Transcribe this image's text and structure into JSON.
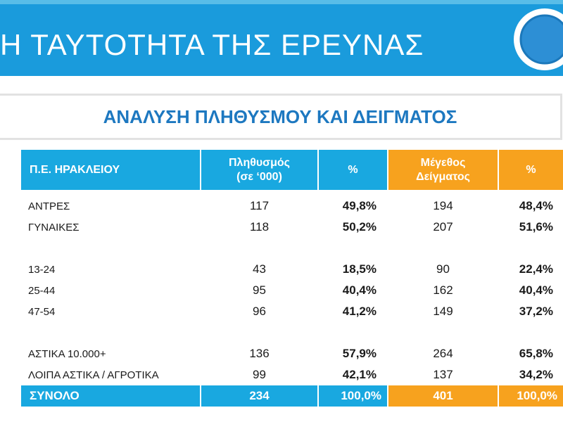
{
  "header": {
    "title": "Η ΤΑΥΤΟΤΗΤΑ ΤΗΣ ΕΡΕΥΝΑΣ",
    "subtitle": "ΑΝΑΛΥΣΗ ΠΛΗΘΥΣΜΟΥ ΚΑΙ ΔΕΙΓΜΑΤΟΣ"
  },
  "colors": {
    "blue": "#19a8e0",
    "orange": "#f7a21e",
    "title_blue": "#1d78c0"
  },
  "table": {
    "columns": {
      "region": "Π.Ε. ΗΡΑΚΛΕΙΟΥ",
      "population_l1": "Πληθυσμός",
      "population_l2": "(σε ‘000)",
      "pct": "%",
      "sample_l1": "Μέγεθος",
      "sample_l2": "Δείγματος",
      "pct2": "%"
    },
    "rows": [
      {
        "label": "ΑΝΤΡΕΣ",
        "population": "117",
        "pop_pct": "49,8%",
        "sample": "194",
        "sample_pct": "48,4%"
      },
      {
        "label": "ΓΥΝΑΙΚΕΣ",
        "population": "118",
        "pop_pct": "50,2%",
        "sample": "207",
        "sample_pct": "51,6%"
      },
      {
        "label": "13-24",
        "population": "43",
        "pop_pct": "18,5%",
        "sample": "90",
        "sample_pct": "22,4%"
      },
      {
        "label": "25-44",
        "population": "95",
        "pop_pct": "40,4%",
        "sample": "162",
        "sample_pct": "40,4%"
      },
      {
        "label": "47-54",
        "population": "96",
        "pop_pct": "41,2%",
        "sample": "149",
        "sample_pct": "37,2%"
      },
      {
        "label": "ΑΣΤΙΚΑ 10.000+",
        "population": "136",
        "pop_pct": "57,9%",
        "sample": "264",
        "sample_pct": "65,8%"
      },
      {
        "label": "ΛΟΙΠΑ ΑΣΤΙΚΑ / ΑΓΡΟΤΙΚΑ",
        "population": "99",
        "pop_pct": "42,1%",
        "sample": "137",
        "sample_pct": "34,2%"
      }
    ],
    "total": {
      "label": "ΣΥΝΟΛΟ",
      "population": "234",
      "pop_pct": "100,0%",
      "sample": "401",
      "sample_pct": "100,0%"
    }
  }
}
